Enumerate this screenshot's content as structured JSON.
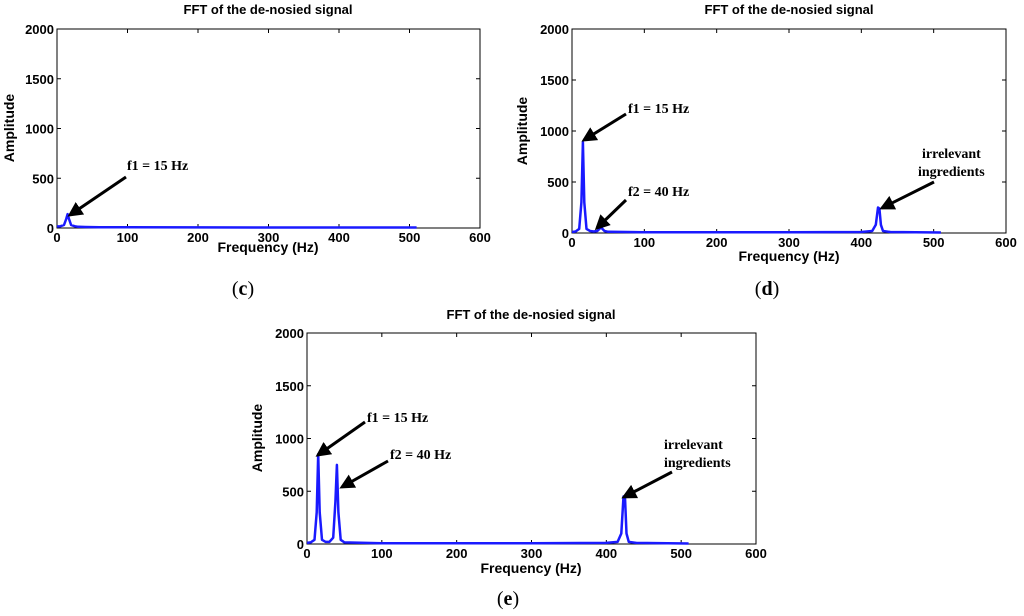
{
  "chart_data": [
    {
      "id": "c",
      "panel_label": "c",
      "type": "line",
      "title": "FFT of the de-nosied signal",
      "xlabel": "Frequency (Hz)",
      "ylabel": "Amplitude",
      "xlim": [
        0,
        600
      ],
      "ylim": [
        0,
        2000
      ],
      "xticks": [
        0,
        100,
        200,
        300,
        400,
        500,
        600
      ],
      "yticks": [
        0,
        500,
        1000,
        1500,
        2000
      ],
      "line_color": "#1a1aff",
      "series": [
        {
          "x": [
            0,
            5,
            10,
            13,
            15,
            17,
            20,
            25,
            30,
            40,
            60,
            100,
            200,
            300,
            400,
            510
          ],
          "y": [
            15,
            18,
            30,
            90,
            140,
            90,
            30,
            18,
            12,
            10,
            8,
            7,
            6,
            5,
            5,
            5
          ]
        }
      ],
      "annotations": [
        {
          "text": "f1 = 15 Hz",
          "target": [
            15,
            140
          ]
        }
      ]
    },
    {
      "id": "d",
      "panel_label": "d",
      "type": "line",
      "title": "FFT of the de-nosied signal",
      "xlabel": "Frequency (Hz)",
      "ylabel": "Amplitude",
      "xlim": [
        0,
        600
      ],
      "ylim": [
        0,
        2000
      ],
      "xticks": [
        0,
        100,
        200,
        300,
        400,
        500,
        600
      ],
      "yticks": [
        0,
        500,
        1000,
        1500,
        2000
      ],
      "line_color": "#1a1aff",
      "series": [
        {
          "x": [
            0,
            5,
            10,
            13,
            15,
            17,
            20,
            25,
            30,
            35,
            38,
            40,
            42,
            45,
            50,
            100,
            200,
            300,
            400,
            415,
            420,
            423,
            425,
            427,
            430,
            440,
            510
          ],
          "y": [
            10,
            15,
            40,
            300,
            890,
            300,
            40,
            20,
            15,
            20,
            40,
            60,
            40,
            20,
            12,
            8,
            8,
            8,
            10,
            20,
            80,
            250,
            240,
            80,
            20,
            10,
            5
          ]
        }
      ],
      "annotations": [
        {
          "text": "f1 = 15 Hz",
          "target": [
            15,
            890
          ]
        },
        {
          "text": "f2 = 40 Hz",
          "target": [
            40,
            60
          ]
        },
        {
          "text": "irrelevant",
          "text2": "ingredients",
          "target": [
            425,
            250
          ]
        }
      ]
    },
    {
      "id": "e",
      "panel_label": "e",
      "type": "line",
      "title": "FFT of the de-nosied signal",
      "xlabel": "Frequency (Hz)",
      "ylabel": "Amplitude",
      "xlim": [
        0,
        600
      ],
      "ylim": [
        0,
        2000
      ],
      "xticks": [
        0,
        100,
        200,
        300,
        400,
        500,
        600
      ],
      "yticks": [
        0,
        500,
        1000,
        1500,
        2000
      ],
      "line_color": "#1a1aff",
      "series": [
        {
          "x": [
            0,
            5,
            10,
            13,
            15,
            17,
            20,
            25,
            30,
            35,
            38,
            40,
            42,
            45,
            50,
            100,
            200,
            300,
            400,
            415,
            420,
            423,
            425,
            427,
            430,
            440,
            510
          ],
          "y": [
            10,
            15,
            40,
            300,
            850,
            300,
            40,
            20,
            20,
            60,
            400,
            750,
            300,
            40,
            15,
            8,
            8,
            8,
            10,
            20,
            100,
            450,
            440,
            100,
            20,
            10,
            5
          ]
        }
      ],
      "annotations": [
        {
          "text": "f1 = 15 Hz",
          "target": [
            15,
            850
          ]
        },
        {
          "text": "f2 = 40 Hz",
          "target": [
            40,
            750
          ]
        },
        {
          "text": "irrelevant",
          "text2": "ingredients",
          "target": [
            425,
            450
          ]
        }
      ]
    }
  ]
}
